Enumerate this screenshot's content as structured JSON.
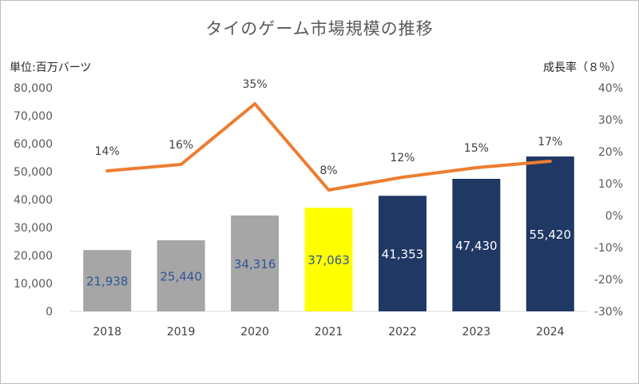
{
  "chart_data": {
    "type": "bar",
    "title": "タイのゲーム市場規模の推移",
    "left_unit": "単位:百万バーツ",
    "right_unit": "成長率（８％）",
    "categories": [
      "2018",
      "2019",
      "2020",
      "2021",
      "2022",
      "2023",
      "2024"
    ],
    "values": [
      21938,
      25440,
      34316,
      37063,
      41353,
      47430,
      55420
    ],
    "value_labels": [
      "21,938",
      "25,440",
      "34,316",
      "37,063",
      "41,353",
      "47,430",
      "55,420"
    ],
    "bar_colors": [
      "#a6a6a6",
      "#a6a6a6",
      "#a6a6a6",
      "#ffff00",
      "#1f3864",
      "#1f3864",
      "#1f3864"
    ],
    "bar_label_colors": [
      "#2f5597",
      "#2f5597",
      "#2f5597",
      "#2f5597",
      "#ffffff",
      "#ffffff",
      "#ffffff"
    ],
    "growth_rate": [
      14,
      16,
      35,
      8,
      12,
      15,
      17
    ],
    "growth_labels": [
      "14%",
      "16%",
      "35%",
      "8%",
      "12%",
      "15%",
      "17%"
    ],
    "line_color": "#ed7d31",
    "ylim": [
      0,
      80000
    ],
    "y_ticks": [
      "0",
      "10,000",
      "20,000",
      "30,000",
      "40,000",
      "50,000",
      "60,000",
      "70,000",
      "80,000"
    ],
    "y2lim": [
      -30,
      40
    ],
    "y2_ticks": [
      "-30%",
      "-20%",
      "-10%",
      "0%",
      "10%",
      "20%",
      "30%",
      "40%"
    ],
    "grid": false,
    "legend": "none"
  }
}
